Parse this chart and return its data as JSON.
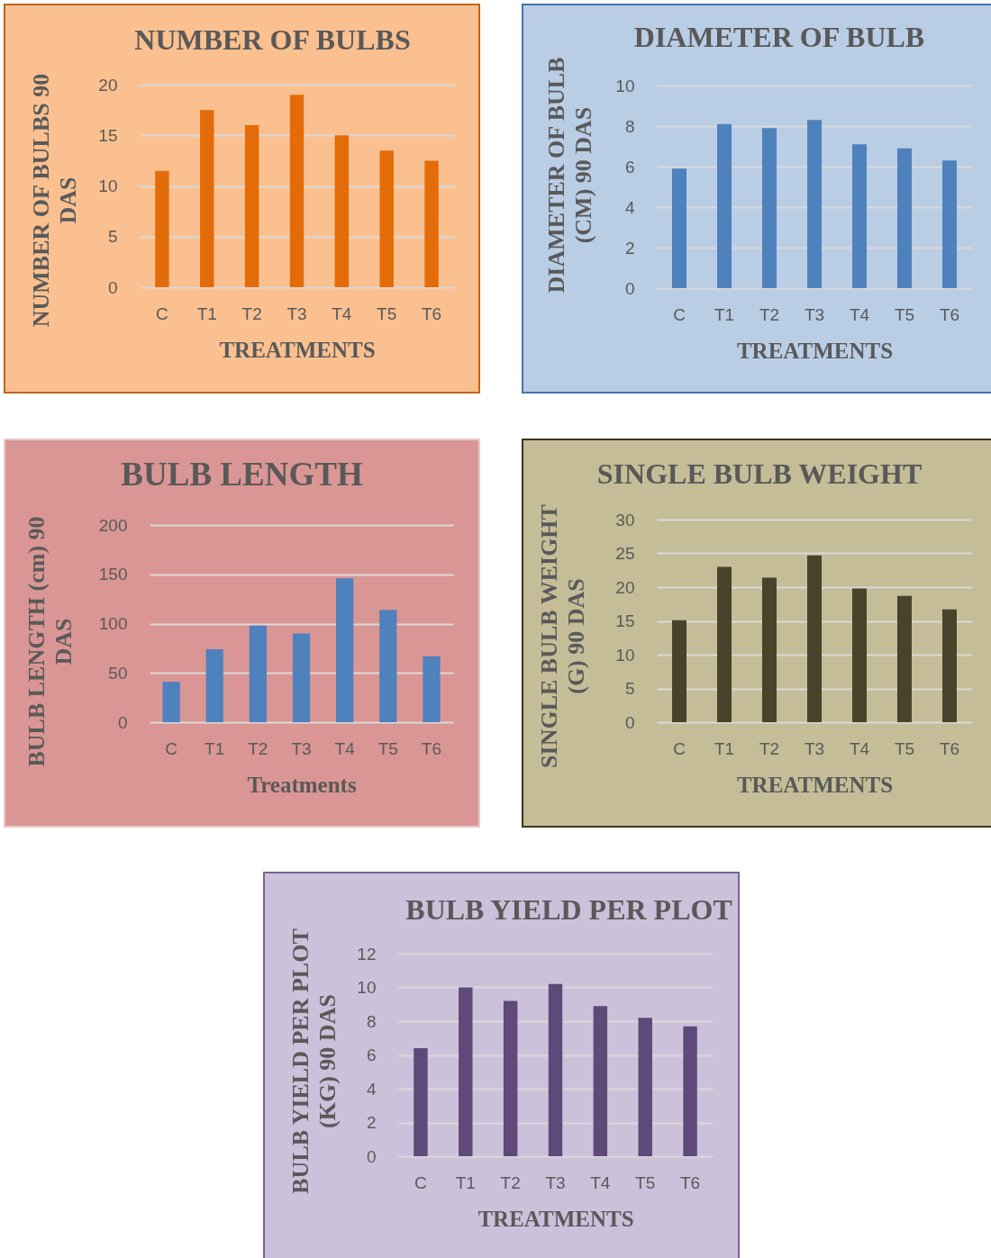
{
  "chart_data": [
    {
      "type": "bar",
      "title": "NUMBER OF BULBS",
      "xlabel": "TREATMENTS",
      "ylabel": "NUMBER OF BULBS 90 DAS",
      "categories": [
        "C",
        "T1",
        "T2",
        "T3",
        "T4",
        "T5",
        "T6"
      ],
      "values": [
        11.5,
        17.5,
        16,
        19,
        15,
        13.5,
        12.5
      ],
      "color": "#e36c09",
      "ylim": [
        0,
        20
      ],
      "yticks": [
        0,
        5,
        10,
        15,
        20
      ],
      "grid": "y"
    },
    {
      "type": "bar",
      "title": "DIAMETER OF BULB",
      "xlabel": "TREATMENTS",
      "ylabel": "DIAMETER OF BULB (CM) 90 DAS",
      "categories": [
        "C",
        "T1",
        "T2",
        "T3",
        "T4",
        "T5",
        "T6"
      ],
      "values": [
        5.9,
        8.1,
        7.9,
        8.3,
        7.1,
        6.9,
        6.3
      ],
      "color": "#4f81bd",
      "ylim": [
        0,
        10
      ],
      "yticks": [
        0,
        2,
        4,
        6,
        8,
        10
      ],
      "grid": "y"
    },
    {
      "type": "bar",
      "title": "BULB LENGTH",
      "xlabel": "Treatments",
      "ylabel": "BULB LENGTH (cm) 90 DAS",
      "categories": [
        "C",
        "T1",
        "T2",
        "T3",
        "T4",
        "T5",
        "T6"
      ],
      "values": [
        41,
        74,
        98,
        90,
        146,
        114,
        67
      ],
      "color": "#4f81bd",
      "ylim": [
        0,
        200
      ],
      "yticks": [
        0,
        50,
        100,
        150,
        200
      ],
      "grid": "y"
    },
    {
      "type": "bar",
      "title": "SINGLE BULB WEIGHT",
      "xlabel": "TREATMENTS",
      "ylabel": "SINGLE BULB WEIGHT (G) 90 DAS",
      "categories": [
        "C",
        "T1",
        "T2",
        "T3",
        "T4",
        "T5",
        "T6"
      ],
      "values": [
        15.1,
        23.0,
        21.4,
        24.7,
        19.8,
        18.7,
        16.7
      ],
      "color": "#48432a",
      "ylim": [
        0,
        30
      ],
      "yticks": [
        0,
        5,
        10,
        15,
        20,
        25,
        30
      ],
      "grid": "y"
    },
    {
      "type": "bar",
      "title": "BULB YIELD PER PLOT",
      "xlabel": "TREATMENTS",
      "ylabel": "BULB YIELD PER PLOT (KG) 90 DAS",
      "categories": [
        "C",
        "T1",
        "T2",
        "T3",
        "T4",
        "T5",
        "T6"
      ],
      "values": [
        6.4,
        10.0,
        9.2,
        10.2,
        8.9,
        8.2,
        7.7
      ],
      "color": "#5f497a",
      "ylim": [
        0,
        12
      ],
      "yticks": [
        0,
        2,
        4,
        6,
        8,
        10,
        12
      ],
      "grid": "y"
    }
  ]
}
